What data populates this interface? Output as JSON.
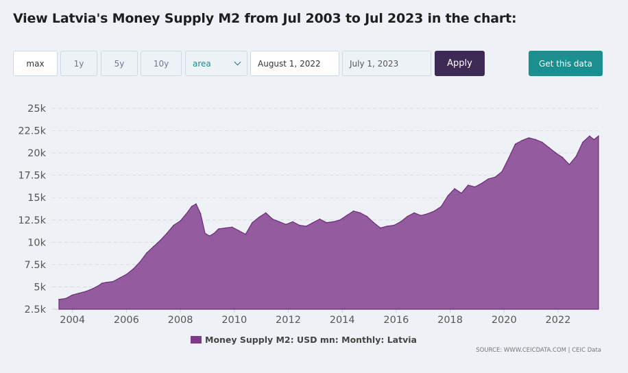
{
  "title": "View Latvia's Money Supply M2 from Jul 2003 to Jul 2023 in the chart:",
  "controls": {
    "ranges": [
      "max",
      "1y",
      "5y",
      "10y"
    ],
    "chart_type": "area",
    "from_date": "August 1, 2022",
    "to_date": "July 1, 2023",
    "apply_label": "Apply",
    "get_data_label": "Get this data"
  },
  "colors": {
    "area": "#7e3a8a",
    "apply": "#3d2b56",
    "get_data": "#1a8f8f"
  },
  "legend_label": "Money Supply M2: USD mn: Monthly: Latvia",
  "source": "SOURCE: WWW.CEICDATA.COM | CEIC Data",
  "chart_data": {
    "type": "area",
    "title": "",
    "xlabel": "",
    "ylabel": "",
    "ylim": [
      2500,
      25000
    ],
    "xlim": [
      "2003-07",
      "2023-07"
    ],
    "y_ticks": [
      "2.5k",
      "5k",
      "7.5k",
      "10k",
      "12.5k",
      "15k",
      "17.5k",
      "20k",
      "22.5k",
      "25k"
    ],
    "x_ticks": [
      "2004",
      "2006",
      "2008",
      "2010",
      "2012",
      "2014",
      "2016",
      "2018",
      "2020",
      "2022"
    ],
    "grid": true,
    "legend": "bottom-center",
    "series": [
      {
        "name": "Money Supply M2: USD mn: Monthly: Latvia",
        "x": [
          "2003-07",
          "2003-10",
          "2004-01",
          "2004-04",
          "2004-07",
          "2004-10",
          "2005-01",
          "2005-02",
          "2005-04",
          "2005-07",
          "2005-10",
          "2006-01",
          "2006-04",
          "2006-07",
          "2006-10",
          "2007-01",
          "2007-04",
          "2007-07",
          "2007-10",
          "2008-01",
          "2008-04",
          "2008-06",
          "2008-08",
          "2008-10",
          "2008-12",
          "2009-02",
          "2009-04",
          "2009-06",
          "2009-09",
          "2009-12",
          "2010-03",
          "2010-06",
          "2010-09",
          "2010-12",
          "2011-03",
          "2011-06",
          "2011-09",
          "2011-12",
          "2012-03",
          "2012-06",
          "2012-09",
          "2012-12",
          "2013-03",
          "2013-06",
          "2013-09",
          "2013-12",
          "2014-03",
          "2014-06",
          "2014-09",
          "2014-12",
          "2015-03",
          "2015-06",
          "2015-09",
          "2015-12",
          "2016-03",
          "2016-06",
          "2016-09",
          "2016-12",
          "2017-03",
          "2017-06",
          "2017-09",
          "2017-12",
          "2018-03",
          "2018-06",
          "2018-09",
          "2018-12",
          "2019-03",
          "2019-06",
          "2019-09",
          "2019-12",
          "2020-03",
          "2020-06",
          "2020-09",
          "2020-12",
          "2021-03",
          "2021-06",
          "2021-09",
          "2021-12",
          "2022-03",
          "2022-06",
          "2022-09",
          "2022-12",
          "2023-03",
          "2023-05",
          "2023-07"
        ],
        "values": [
          3600,
          3700,
          4100,
          4300,
          4500,
          4800,
          5200,
          5400,
          5500,
          5600,
          6000,
          6400,
          7000,
          7800,
          8800,
          9500,
          10200,
          11000,
          11900,
          12400,
          13300,
          14000,
          14300,
          13200,
          11000,
          10700,
          11000,
          11500,
          11600,
          11700,
          11300,
          10900,
          12200,
          12800,
          13300,
          12600,
          12300,
          12000,
          12300,
          11900,
          11800,
          12200,
          12600,
          12200,
          12300,
          12500,
          13000,
          13500,
          13300,
          12900,
          12200,
          11600,
          11800,
          11900,
          12300,
          12900,
          13300,
          13000,
          13200,
          13500,
          14000,
          15200,
          16000,
          15500,
          16400,
          16200,
          16600,
          17100,
          17300,
          17900,
          19400,
          21000,
          21400,
          21700,
          21500,
          21200,
          20600,
          20000,
          19500,
          18700,
          19600,
          21200,
          21900,
          21500,
          21900
        ]
      }
    ]
  }
}
